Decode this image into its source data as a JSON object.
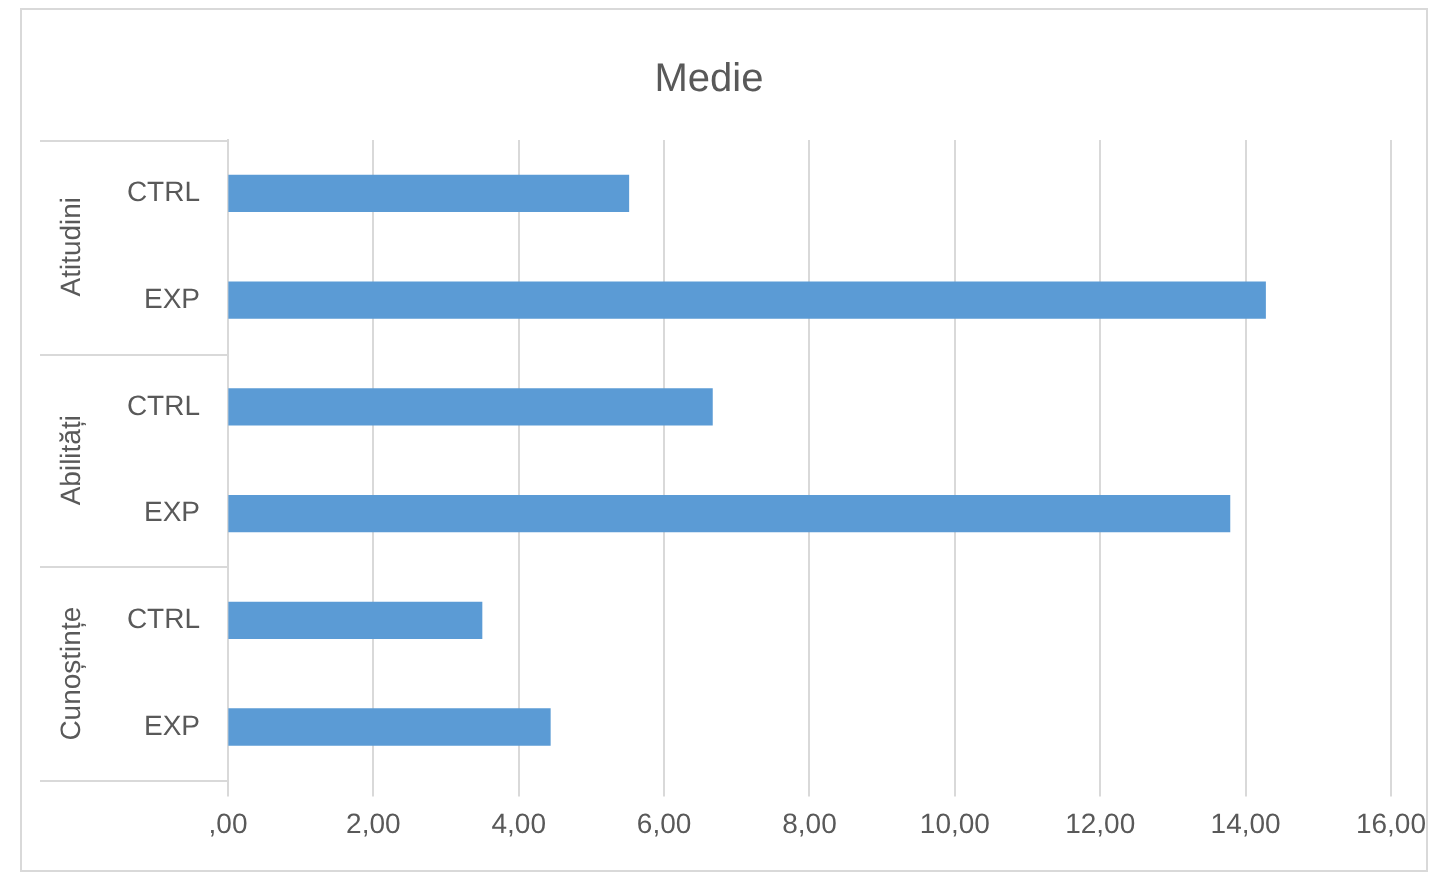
{
  "chart_data": {
    "type": "bar",
    "orientation": "horizontal",
    "title": "Medie",
    "categories": [
      "CTRL",
      "EXP",
      "CTRL",
      "EXP",
      "CTRL",
      "EXP"
    ],
    "values": [
      5.51,
      14.27,
      6.66,
      13.78,
      3.49,
      4.43
    ],
    "color": "#5b9bd5",
    "xlim": [
      0,
      16
    ],
    "xticks": [
      {
        "value": 0,
        "label": ",00"
      },
      {
        "value": 2,
        "label": "2,00"
      },
      {
        "value": 4,
        "label": "4,00"
      },
      {
        "value": 6,
        "label": "6,00"
      },
      {
        "value": 8,
        "label": "8,00"
      },
      {
        "value": 10,
        "label": "10,00"
      },
      {
        "value": 12,
        "label": "12,00"
      },
      {
        "value": 14,
        "label": "14,00"
      },
      {
        "value": 16,
        "label": "16,00"
      }
    ],
    "grid": "x",
    "annotations": [
      "Atitudini",
      "Abilități",
      "Cunoștințe"
    ]
  }
}
